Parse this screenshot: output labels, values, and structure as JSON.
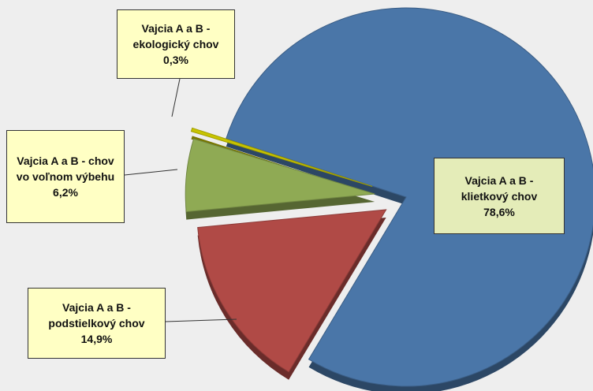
{
  "chart_data": {
    "type": "pie",
    "categories": [
      "Vajcia A a B - klietkový chov",
      "Vajcia A a B - podstielkový chov",
      "Vajcia A a B - chov vo voľnom výbehu",
      "Vajcia A a B - ekologický chov"
    ],
    "values": [
      78.6,
      14.9,
      6.2,
      0.3
    ],
    "value_labels": [
      "78,6%",
      "14,9%",
      "6,2%",
      "0,3%"
    ],
    "colors": [
      "#4a76a8",
      "#b04a46",
      "#8faa54",
      "#c8c400"
    ]
  }
}
